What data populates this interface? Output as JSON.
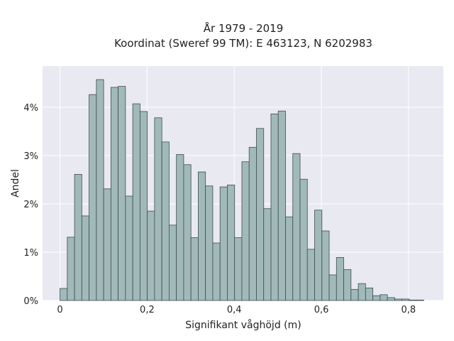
{
  "chart_data": {
    "type": "bar",
    "title_lines": [
      "År 1979 - 2019",
      "Koordinat (Sweref 99 TM): E 463123, N 6202983"
    ],
    "xlabel": "Signifikant våghöjd (m)",
    "ylabel": "Andel",
    "xlim": [
      -0.04,
      0.88
    ],
    "ylim": [
      0,
      0.0485
    ],
    "x_ticks": [
      0,
      0.2,
      0.4,
      0.6,
      0.8
    ],
    "x_tick_labels": [
      "0",
      "0,2",
      "0,4",
      "0,6",
      "0,8"
    ],
    "y_ticks": [
      0,
      0.01,
      0.02,
      0.03,
      0.04
    ],
    "y_tick_labels": [
      "0%",
      "1%",
      "2%",
      "3%",
      "4%"
    ],
    "bin_width": 0.0167,
    "bin_start": 0.0,
    "values": [
      0.0025,
      0.0131,
      0.0261,
      0.0175,
      0.0426,
      0.0457,
      0.0231,
      0.0441,
      0.0443,
      0.0216,
      0.0407,
      0.0391,
      0.0185,
      0.0378,
      0.0328,
      0.0156,
      0.0302,
      0.0281,
      0.013,
      0.0266,
      0.0237,
      0.0119,
      0.0235,
      0.0239,
      0.013,
      0.0287,
      0.0317,
      0.0356,
      0.019,
      0.0386,
      0.0392,
      0.0173,
      0.0304,
      0.0251,
      0.0106,
      0.0187,
      0.0144,
      0.0053,
      0.0089,
      0.0064,
      0.0023,
      0.0035,
      0.0026,
      0.001,
      0.0012,
      0.0006,
      0.0003,
      0.0003,
      0.0001,
      0.0001
    ],
    "grid": true,
    "colors": {
      "plot_background": "#e9e9f2",
      "bar_fill": "#a1b9b9",
      "bar_edge": "#3f4d4d",
      "grid": "#ffffff"
    }
  }
}
